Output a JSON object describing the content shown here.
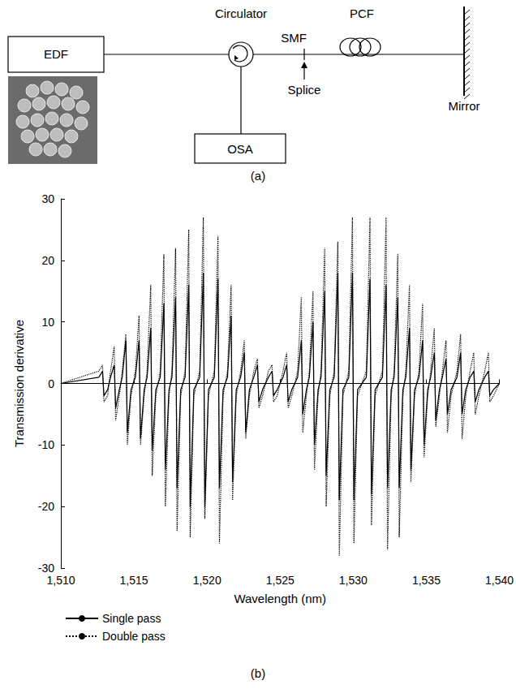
{
  "diagram": {
    "nodes": [
      {
        "label": "EDF"
      },
      {
        "label": "Circulator"
      },
      {
        "label": "OSA"
      },
      {
        "label": "SMF"
      },
      {
        "label": "Splice"
      },
      {
        "label": "PCF"
      },
      {
        "label": "Mirror"
      }
    ],
    "caption": "(a)"
  },
  "chart_data": {
    "type": "line",
    "caption": "(b)",
    "x_label": "Wavelength (nm)",
    "y_label": "Transmission derivative",
    "x": [
      1510,
      1512.6,
      1512.85,
      1512.95,
      1513.2,
      1513.4,
      1513.65,
      1513.75,
      1514.0,
      1514.2,
      1514.45,
      1514.55,
      1514.8,
      1515.1,
      1515.35,
      1515.45,
      1515.7,
      1515.9,
      1516.15,
      1516.25,
      1516.5,
      1516.8,
      1517.05,
      1517.15,
      1517.4,
      1517.6,
      1517.85,
      1517.95,
      1518.2,
      1518.5,
      1518.75,
      1518.85,
      1519.1,
      1519.5,
      1519.75,
      1519.85,
      1520.1,
      1520.5,
      1520.75,
      1520.85,
      1521.1,
      1521.4,
      1521.65,
      1521.75,
      1522.0,
      1522.3,
      1522.55,
      1522.65,
      1522.9,
      1523.2,
      1523.45,
      1523.55,
      1523.8,
      1524.2,
      1524.45,
      1524.55,
      1524.8,
      1525.2,
      1525.45,
      1525.55,
      1525.8,
      1526.2,
      1526.45,
      1526.55,
      1526.8,
      1527.0,
      1527.25,
      1527.35,
      1527.6,
      1527.8,
      1528.05,
      1528.15,
      1528.4,
      1528.7,
      1528.95,
      1529.05,
      1529.3,
      1529.7,
      1529.95,
      1530.05,
      1530.3,
      1530.9,
      1531.15,
      1531.25,
      1531.5,
      1532.0,
      1532.25,
      1532.35,
      1532.6,
      1532.8,
      1533.05,
      1533.15,
      1533.4,
      1533.6,
      1533.85,
      1533.95,
      1534.2,
      1534.5,
      1534.75,
      1534.85,
      1535.1,
      1535.3,
      1535.55,
      1535.65,
      1535.9,
      1536.1,
      1536.35,
      1536.45,
      1536.7,
      1537.1,
      1537.35,
      1537.45,
      1537.7,
      1538.0,
      1538.25,
      1538.35,
      1538.6,
      1539.0,
      1539.25,
      1539.35,
      1539.6,
      1540
    ],
    "series": [
      {
        "name": "Single pass",
        "color": "#000000",
        "line_style": "solid",
        "values": [
          0,
          1,
          2,
          -2,
          -1,
          1,
          3,
          -4,
          -1,
          1,
          7,
          -8,
          -1,
          1,
          7,
          -9,
          -1,
          1,
          9,
          -11,
          -1,
          1,
          13,
          -14,
          -1,
          1,
          14,
          -17,
          -1,
          1,
          16,
          -20,
          -1,
          1,
          18,
          -20,
          -1,
          1,
          17,
          -17,
          -1,
          1,
          11,
          -16,
          -1,
          1,
          5,
          -8,
          -1,
          1,
          3,
          -3,
          -1,
          1,
          2,
          -2,
          -1,
          1,
          3,
          -3,
          -1,
          1,
          7,
          -5,
          -1,
          1,
          10,
          -10,
          -1,
          1,
          15,
          -15,
          -1,
          1,
          18,
          -19,
          -1,
          1,
          18,
          -19,
          -1,
          1,
          17,
          -18,
          -1,
          1,
          16,
          -17,
          -1,
          1,
          14,
          -17,
          -1,
          1,
          9,
          -14,
          -1,
          1,
          7,
          -10,
          -1,
          1,
          5,
          -6,
          -1,
          1,
          4,
          -5,
          -1,
          1,
          5,
          -5,
          -1,
          1,
          2,
          -3,
          -1,
          1,
          2,
          -2,
          -1,
          0
        ]
      },
      {
        "name": "Double pass",
        "color": "#000000",
        "line_style": "dotted",
        "values": [
          0,
          2,
          3,
          -3,
          -2,
          2,
          6,
          -6,
          -2,
          2,
          8,
          -10,
          -2,
          2,
          11,
          -10,
          -2,
          2,
          16,
          -15,
          -2,
          2,
          21,
          -20,
          -2,
          2,
          22,
          -24,
          -2,
          2,
          25,
          -25,
          -2,
          2,
          27,
          -22,
          -2,
          2,
          24,
          -26,
          -2,
          2,
          16,
          -19,
          -2,
          2,
          7,
          -9,
          -2,
          2,
          4,
          -4,
          -2,
          2,
          3,
          -3,
          -2,
          2,
          5,
          -4,
          -2,
          2,
          14,
          -8,
          -2,
          2,
          15,
          -14,
          -2,
          2,
          22,
          -20,
          -2,
          2,
          23,
          -28,
          -2,
          2,
          27,
          -26,
          -2,
          2,
          27,
          -23,
          -2,
          2,
          27,
          -27,
          -2,
          2,
          21,
          -25,
          -2,
          2,
          16,
          -16,
          -2,
          2,
          13,
          -12,
          -2,
          2,
          9,
          -7,
          -2,
          2,
          7,
          -8,
          -2,
          2,
          8,
          -9,
          -2,
          2,
          5,
          -5,
          -2,
          2,
          5,
          -3,
          -2,
          0
        ]
      }
    ],
    "xlim": [
      1510,
      1540
    ],
    "xticks": [
      1510,
      1515,
      1520,
      1525,
      1530,
      1535,
      1540
    ],
    "ylim": [
      -30,
      30
    ],
    "yticks": [
      -30,
      -20,
      -10,
      0,
      10,
      20,
      30
    ],
    "grid": false,
    "legend": "bottom-left"
  }
}
